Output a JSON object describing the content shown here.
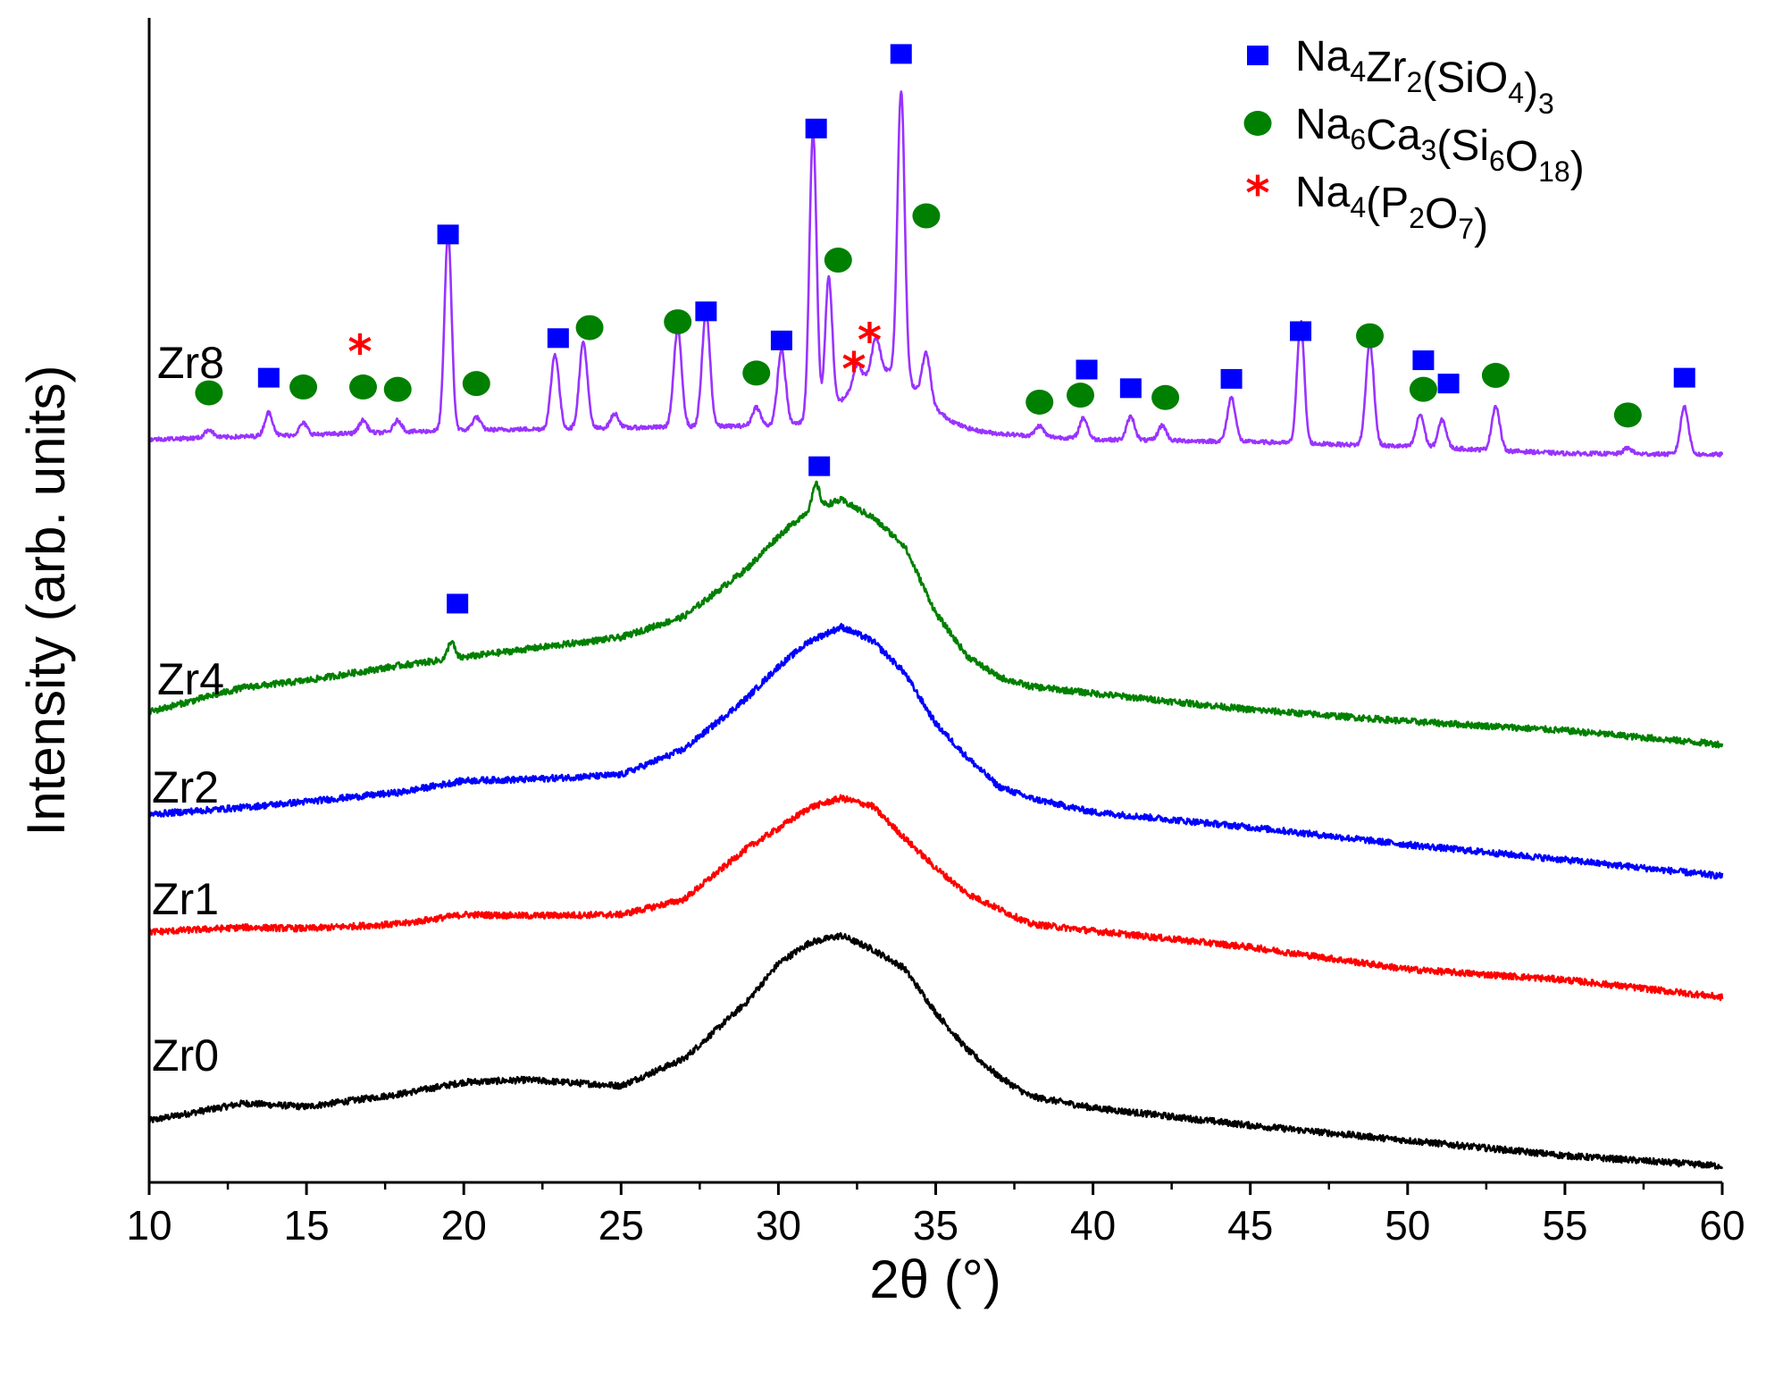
{
  "chart_data": {
    "type": "line",
    "title": "",
    "xlabel": "2θ (°)",
    "ylabel": "Intensity (arb. units)",
    "xlim": [
      10,
      60
    ],
    "ylim": [
      0,
      100
    ],
    "x_ticks": [
      "10",
      "15",
      "20",
      "25",
      "30",
      "35",
      "40",
      "45",
      "50",
      "55",
      "60"
    ],
    "y_ticks": [],
    "series": [
      {
        "name": "Zr0",
        "color": "#000000",
        "baseline": 5.3,
        "amorphous_hump": {
          "center": 32,
          "width": 3.6,
          "height": 13.2
        },
        "points": [
          [
            10,
            5.3
          ],
          [
            13,
            6.8
          ],
          [
            15,
            6.5
          ],
          [
            18,
            7.6
          ],
          [
            20,
            8.6
          ],
          [
            22,
            8.8
          ],
          [
            25,
            8.3
          ],
          [
            27,
            10.6
          ],
          [
            29,
            15.5
          ],
          [
            30,
            18.8
          ],
          [
            31,
            20.6
          ],
          [
            32,
            21.2
          ],
          [
            33,
            20.0
          ],
          [
            34,
            18.4
          ],
          [
            35,
            14.6
          ],
          [
            36,
            11.4
          ],
          [
            37,
            9.1
          ],
          [
            38,
            7.4
          ],
          [
            40,
            6.4
          ],
          [
            45,
            4.9
          ],
          [
            50,
            3.6
          ],
          [
            55,
            2.3
          ],
          [
            60,
            1.4
          ]
        ],
        "peaks": []
      },
      {
        "name": "Zr1",
        "color": "#ff0000",
        "baseline": 21.5,
        "amorphous_hump": {
          "center": 32.3,
          "width": 3.8,
          "height": 11.5
        },
        "points": [
          [
            10,
            21.5
          ],
          [
            13,
            21.9
          ],
          [
            15,
            21.8
          ],
          [
            18,
            22.2
          ],
          [
            20,
            23.0
          ],
          [
            22,
            22.9
          ],
          [
            25,
            23.0
          ],
          [
            27,
            24.3
          ],
          [
            29,
            28.7
          ],
          [
            30,
            30.4
          ],
          [
            31,
            32.2
          ],
          [
            32,
            33.0
          ],
          [
            33,
            32.3
          ],
          [
            34,
            29.6
          ],
          [
            35,
            27.0
          ],
          [
            36,
            24.8
          ],
          [
            37,
            23.5
          ],
          [
            38,
            22.2
          ],
          [
            40,
            21.6
          ],
          [
            45,
            20.2
          ],
          [
            50,
            18.3
          ],
          [
            55,
            17.4
          ],
          [
            60,
            15.9
          ]
        ],
        "peaks": []
      },
      {
        "name": "Zr2",
        "color": "#0000ff",
        "baseline": 31.6,
        "amorphous_hump": {
          "center": 32,
          "width": 3.8,
          "height": 14.7
        },
        "points": [
          [
            10,
            31.6
          ],
          [
            13,
            32.2
          ],
          [
            15,
            32.7
          ],
          [
            18,
            33.5
          ],
          [
            20,
            34.5
          ],
          [
            22,
            34.6
          ],
          [
            25,
            35.0
          ],
          [
            27,
            37.2
          ],
          [
            29,
            41.6
          ],
          [
            30,
            44.3
          ],
          [
            31,
            46.5
          ],
          [
            32,
            47.7
          ],
          [
            33,
            46.5
          ],
          [
            34,
            43.8
          ],
          [
            35,
            39.4
          ],
          [
            36,
            36.5
          ],
          [
            37,
            34.0
          ],
          [
            38,
            33.0
          ],
          [
            40,
            31.8
          ],
          [
            45,
            30.5
          ],
          [
            50,
            29.0
          ],
          [
            55,
            27.7
          ],
          [
            60,
            26.3
          ]
        ],
        "peaks": []
      },
      {
        "name": "Zr4",
        "color": "#008000",
        "baseline": 40.4,
        "amorphous_hump": {
          "center": 32,
          "width": 3.8,
          "height": 15.0
        },
        "points": [
          [
            10,
            40.4
          ],
          [
            13,
            42.5
          ],
          [
            15,
            43.1
          ],
          [
            18,
            44.4
          ],
          [
            20,
            45.1
          ],
          [
            22,
            45.8
          ],
          [
            25,
            46.8
          ],
          [
            27,
            48.6
          ],
          [
            29,
            52.7
          ],
          [
            30,
            55.5
          ],
          [
            31,
            57.8
          ],
          [
            32,
            58.6
          ],
          [
            33,
            57.1
          ],
          [
            34,
            54.7
          ],
          [
            35,
            48.9
          ],
          [
            36,
            45.2
          ],
          [
            37,
            43.4
          ],
          [
            38,
            42.6
          ],
          [
            40,
            42.0
          ],
          [
            45,
            40.6
          ],
          [
            50,
            39.6
          ],
          [
            55,
            38.8
          ],
          [
            60,
            37.6
          ]
        ],
        "peaks": [
          [
            19.6,
            1.5
          ],
          [
            31.2,
            2.0
          ]
        ]
      },
      {
        "name": "Zr8",
        "color": "#9933ff",
        "baseline": 63.8,
        "amorphous_hump": {
          "center": 33.4,
          "width": 1.6,
          "height": 5.0
        },
        "points": [
          [
            10,
            63.8
          ],
          [
            15,
            64.2
          ],
          [
            20,
            64.6
          ],
          [
            25,
            64.8
          ],
          [
            30,
            65.0
          ],
          [
            35,
            64.6
          ],
          [
            40,
            63.8
          ],
          [
            45,
            63.6
          ],
          [
            50,
            63.2
          ],
          [
            55,
            62.6
          ],
          [
            60,
            62.5
          ]
        ],
        "peaks": [
          [
            11.9,
            0.7
          ],
          [
            13.8,
            2.0
          ],
          [
            14.9,
            1.0
          ],
          [
            16.8,
            1.1
          ],
          [
            17.9,
            1.0
          ],
          [
            19.5,
            17.0
          ],
          [
            20.4,
            1.1
          ],
          [
            22.9,
            6.4
          ],
          [
            23.8,
            7.4
          ],
          [
            24.8,
            1.2
          ],
          [
            26.8,
            8.4
          ],
          [
            27.7,
            9.8
          ],
          [
            29.3,
            1.6
          ],
          [
            30.1,
            6.4
          ],
          [
            31.1,
            24.6
          ],
          [
            31.6,
            11.4
          ],
          [
            32.5,
            1.8
          ],
          [
            33.1,
            3.0
          ],
          [
            33.9,
            24.6
          ],
          [
            34.7,
            4.0
          ],
          [
            38.3,
            0.9
          ],
          [
            39.7,
            1.8
          ],
          [
            41.2,
            2.0
          ],
          [
            42.2,
            1.3
          ],
          [
            44.4,
            3.8
          ],
          [
            46.6,
            10.5
          ],
          [
            48.8,
            8.8
          ],
          [
            50.4,
            2.8
          ],
          [
            51.1,
            2.4
          ],
          [
            52.8,
            3.8
          ],
          [
            57.0,
            0.5
          ],
          [
            58.8,
            4.1
          ]
        ]
      }
    ],
    "phases": [
      {
        "name": "Na4Zr2(SiO4)3",
        "marker": "square",
        "color": "#0000ff"
      },
      {
        "name": "Na6Ca3(Si6O18)",
        "marker": "circle",
        "color": "#008000"
      },
      {
        "name": "Na4(P2O7)",
        "marker": "asterisk",
        "color": "#ff0000"
      }
    ],
    "markers": [
      {
        "x": 13.8,
        "y": 69.1,
        "phase": 0
      },
      {
        "x": 19.5,
        "y": 81.4,
        "phase": 0
      },
      {
        "x": 23.0,
        "y": 72.5,
        "phase": 0
      },
      {
        "x": 27.7,
        "y": 74.8,
        "phase": 0
      },
      {
        "x": 30.1,
        "y": 72.3,
        "phase": 0
      },
      {
        "x": 31.2,
        "y": 90.5,
        "phase": 0
      },
      {
        "x": 33.9,
        "y": 96.9,
        "phase": 0
      },
      {
        "x": 39.8,
        "y": 69.8,
        "phase": 0
      },
      {
        "x": 41.2,
        "y": 68.2,
        "phase": 0
      },
      {
        "x": 44.4,
        "y": 69.0,
        "phase": 0
      },
      {
        "x": 46.6,
        "y": 73.1,
        "phase": 0
      },
      {
        "x": 50.5,
        "y": 70.6,
        "phase": 0
      },
      {
        "x": 51.3,
        "y": 68.6,
        "phase": 0
      },
      {
        "x": 58.8,
        "y": 69.1,
        "phase": 0
      },
      {
        "x": 31.3,
        "y": 61.5,
        "phase": 0
      },
      {
        "x": 19.8,
        "y": 49.7,
        "phase": 0
      },
      {
        "x": 11.9,
        "y": 67.8,
        "phase": 1
      },
      {
        "x": 14.9,
        "y": 68.3,
        "phase": 1
      },
      {
        "x": 16.8,
        "y": 68.3,
        "phase": 1
      },
      {
        "x": 17.9,
        "y": 68.1,
        "phase": 1
      },
      {
        "x": 20.4,
        "y": 68.6,
        "phase": 1
      },
      {
        "x": 24.0,
        "y": 73.4,
        "phase": 1
      },
      {
        "x": 26.8,
        "y": 73.9,
        "phase": 1
      },
      {
        "x": 29.3,
        "y": 69.5,
        "phase": 1
      },
      {
        "x": 31.9,
        "y": 79.2,
        "phase": 1
      },
      {
        "x": 34.7,
        "y": 83.0,
        "phase": 1
      },
      {
        "x": 38.3,
        "y": 67.0,
        "phase": 1
      },
      {
        "x": 39.6,
        "y": 67.6,
        "phase": 1
      },
      {
        "x": 42.3,
        "y": 67.4,
        "phase": 1
      },
      {
        "x": 48.8,
        "y": 72.7,
        "phase": 1
      },
      {
        "x": 50.5,
        "y": 68.1,
        "phase": 1
      },
      {
        "x": 52.8,
        "y": 69.3,
        "phase": 1
      },
      {
        "x": 57.0,
        "y": 65.9,
        "phase": 1
      },
      {
        "x": 16.7,
        "y": 71.5,
        "phase": 2
      },
      {
        "x": 32.4,
        "y": 70.0,
        "phase": 2
      },
      {
        "x": 32.9,
        "y": 72.5,
        "phase": 2
      }
    ],
    "legend_position": "top-right",
    "grid": false
  }
}
